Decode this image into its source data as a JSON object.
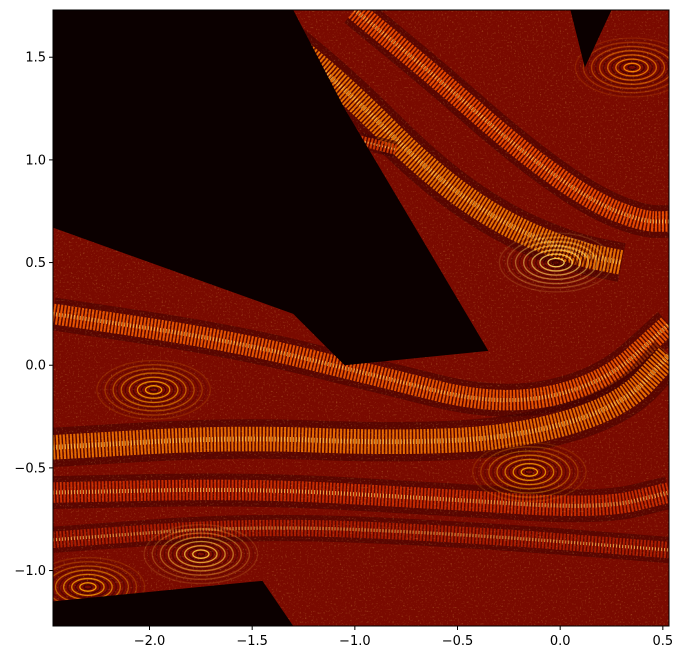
{
  "chart_data": {
    "type": "heatmap",
    "title": "",
    "xlabel": "",
    "ylabel": "",
    "xlim": [
      -2.47,
      0.53
    ],
    "ylim": [
      -1.27,
      1.73
    ],
    "x_ticks": [
      {
        "value": -2.0,
        "label": "−2.0"
      },
      {
        "value": -1.5,
        "label": "−1.5"
      },
      {
        "value": -1.0,
        "label": "−1.0"
      },
      {
        "value": -0.5,
        "label": "−0.5"
      },
      {
        "value": 0.0,
        "label": "0.0"
      },
      {
        "value": 0.5,
        "label": "0.5"
      }
    ],
    "y_ticks": [
      {
        "value": -1.0,
        "label": "−1.0"
      },
      {
        "value": -0.5,
        "label": "−0.5"
      },
      {
        "value": 0.0,
        "label": "0.0"
      },
      {
        "value": 0.5,
        "label": "0.5"
      },
      {
        "value": 1.0,
        "label": "1.0"
      },
      {
        "value": 1.5,
        "label": "1.5"
      }
    ],
    "colormap": [
      "#0b0000",
      "#5a0000",
      "#b81a00",
      "#f05a00",
      "#ffb000",
      "#ffffa0"
    ],
    "regions": {
      "dark_void": [
        [
          -2.47,
          1.73
        ],
        [
          -1.3,
          1.73
        ],
        [
          -1.05,
          1.25
        ],
        [
          -0.35,
          0.07
        ],
        [
          -1.05,
          0.0
        ],
        [
          -1.3,
          0.25
        ],
        [
          -2.47,
          0.67
        ]
      ],
      "dark_void_right": [
        [
          0.05,
          1.73
        ],
        [
          0.25,
          1.73
        ],
        [
          0.12,
          1.45
        ]
      ],
      "dark_bottom_left": [
        [
          -2.47,
          -1.27
        ],
        [
          -1.3,
          -1.27
        ],
        [
          -1.45,
          -1.05
        ],
        [
          -2.47,
          -1.15
        ]
      ]
    },
    "bands": [
      {
        "points": [
          [
            -2.47,
            0.25
          ],
          [
            -1.6,
            0.12
          ],
          [
            -0.9,
            -0.05
          ],
          [
            -0.3,
            -0.2
          ],
          [
            0.2,
            -0.1
          ],
          [
            0.53,
            0.2
          ]
        ],
        "width": 0.1,
        "color": "#ff6000"
      },
      {
        "points": [
          [
            -2.47,
            -0.4
          ],
          [
            -1.6,
            -0.35
          ],
          [
            -0.8,
            -0.38
          ],
          [
            -0.2,
            -0.35
          ],
          [
            0.3,
            -0.2
          ],
          [
            0.53,
            0.05
          ]
        ],
        "width": 0.12,
        "color": "#ff7a00"
      },
      {
        "points": [
          [
            -2.47,
            -0.62
          ],
          [
            -1.5,
            -0.6
          ],
          [
            -0.6,
            -0.65
          ],
          [
            0.2,
            -0.7
          ],
          [
            0.53,
            -0.62
          ]
        ],
        "width": 0.1,
        "color": "#d83000"
      },
      {
        "points": [
          [
            -1.45,
            1.68
          ],
          [
            -1.05,
            1.35
          ],
          [
            -0.65,
            0.95
          ],
          [
            -0.3,
            0.7
          ],
          [
            0.05,
            0.55
          ],
          [
            0.3,
            0.5
          ]
        ],
        "width": 0.12,
        "color": "#ff8000"
      },
      {
        "points": [
          [
            -1.0,
            1.73
          ],
          [
            -0.6,
            1.4
          ],
          [
            -0.2,
            1.05
          ],
          [
            0.15,
            0.8
          ],
          [
            0.4,
            0.7
          ],
          [
            0.53,
            0.7
          ]
        ],
        "width": 0.1,
        "color": "#ff5500"
      },
      {
        "points": [
          [
            -2.2,
            1.45
          ],
          [
            -1.8,
            1.35
          ],
          [
            -1.4,
            1.2
          ],
          [
            -1.0,
            1.1
          ],
          [
            -0.8,
            1.05
          ]
        ],
        "width": 0.05,
        "color": "#e04000"
      },
      {
        "points": [
          [
            -2.3,
            1.3
          ],
          [
            -1.9,
            1.2
          ],
          [
            -1.45,
            1.05
          ],
          [
            -1.1,
            0.95
          ]
        ],
        "width": 0.04,
        "color": "#c83000"
      },
      {
        "points": [
          [
            -2.47,
            -0.85
          ],
          [
            -1.5,
            -0.78
          ],
          [
            -0.5,
            -0.82
          ],
          [
            0.53,
            -0.9
          ]
        ],
        "width": 0.08,
        "color": "#b82000"
      }
    ],
    "ring_centers": [
      {
        "x": -1.98,
        "y": -0.12,
        "color": "#ffb000"
      },
      {
        "x": -0.15,
        "y": -0.52,
        "color": "#ffb000"
      },
      {
        "x": -0.02,
        "y": 0.5,
        "color": "#ffe060"
      },
      {
        "x": -2.3,
        "y": -1.08,
        "color": "#ffb000"
      },
      {
        "x": -1.75,
        "y": -0.92,
        "color": "#ffd040"
      },
      {
        "x": 0.35,
        "y": 1.45,
        "color": "#ff9000"
      }
    ],
    "grid": false,
    "legend": "none"
  }
}
